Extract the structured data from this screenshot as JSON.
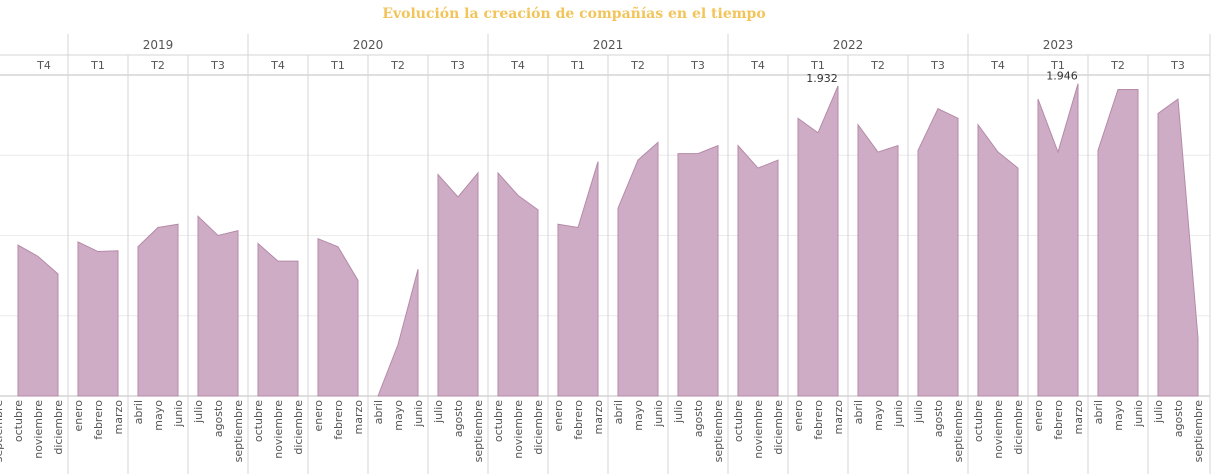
{
  "title": "Evolución la creación de compañías en el tiempo",
  "chart_data": {
    "type": "area",
    "title": "Evolución la creación de compañías en el tiempo",
    "color": "#cfacc5",
    "stroke_color": "#b58aa8",
    "title_color": "#f2c45a",
    "grid": true,
    "ylim": [
      0,
      2000
    ],
    "years": [
      {
        "label": "2019",
        "quarters": 4
      },
      {
        "label": "2020",
        "quarters": 4
      },
      {
        "label": "2021",
        "quarters": 4
      },
      {
        "label": "2022",
        "quarters": 4
      },
      {
        "label": "2023",
        "quarters": 3
      }
    ],
    "quarters": [
      {
        "label": "T4",
        "months": [
          "septiembre",
          "octubre",
          "noviembre",
          "diciembre"
        ],
        "values": [
          null,
          940,
          870,
          760
        ]
      },
      {
        "label": "T1",
        "months": [
          "enero",
          "febrero",
          "marzo"
        ],
        "values": [
          960,
          900,
          905
        ]
      },
      {
        "label": "T2",
        "months": [
          "abril",
          "mayo",
          "junio"
        ],
        "values": [
          930,
          1050,
          1070
        ]
      },
      {
        "label": "T3",
        "months": [
          "julio",
          "agosto",
          "septiembre"
        ],
        "values": [
          1120,
          1000,
          1030
        ]
      },
      {
        "label": "T4",
        "months": [
          "octubre",
          "noviembre",
          "diciembre"
        ],
        "values": [
          950,
          840,
          840
        ]
      },
      {
        "label": "T1",
        "months": [
          "enero",
          "febrero",
          "marzo"
        ],
        "values": [
          980,
          930,
          720
        ]
      },
      {
        "label": "T2",
        "months": [
          "abril",
          "mayo",
          "junio"
        ],
        "values": [
          0,
          320,
          790
        ]
      },
      {
        "label": "T3",
        "months": [
          "julio",
          "agosto",
          "septiembre"
        ],
        "values": [
          1380,
          1240,
          1390
        ]
      },
      {
        "label": "T4",
        "months": [
          "octubre",
          "noviembre",
          "diciembre"
        ],
        "values": [
          1390,
          1250,
          1160
        ]
      },
      {
        "label": "T1",
        "months": [
          "enero",
          "febrero",
          "marzo"
        ],
        "values": [
          1070,
          1050,
          1460
        ]
      },
      {
        "label": "T2",
        "months": [
          "abril",
          "mayo",
          "junio"
        ],
        "values": [
          1170,
          1470,
          1580
        ]
      },
      {
        "label": "T3",
        "months": [
          "julio",
          "agosto",
          "septiembre"
        ],
        "values": [
          1510,
          1510,
          1560
        ]
      },
      {
        "label": "T4",
        "months": [
          "octubre",
          "noviembre",
          "diciembre"
        ],
        "values": [
          1560,
          1420,
          1470
        ]
      },
      {
        "label": "T1",
        "months": [
          "enero",
          "febrero",
          "marzo"
        ],
        "values": [
          1730,
          1640,
          1932
        ]
      },
      {
        "label": "T2",
        "months": [
          "abril",
          "mayo",
          "junio"
        ],
        "values": [
          1690,
          1520,
          1560
        ]
      },
      {
        "label": "T3",
        "months": [
          "julio",
          "agosto",
          "septiembre"
        ],
        "values": [
          1530,
          1790,
          1730
        ]
      },
      {
        "label": "T4",
        "months": [
          "octubre",
          "noviembre",
          "diciembre"
        ],
        "values": [
          1690,
          1520,
          1420
        ]
      },
      {
        "label": "T1",
        "months": [
          "enero",
          "febrero",
          "marzo"
        ],
        "values": [
          1850,
          1520,
          1946
        ]
      },
      {
        "label": "T2",
        "months": [
          "abril",
          "mayo",
          "junio"
        ],
        "values": [
          1530,
          1910,
          1910
        ]
      },
      {
        "label": "T3",
        "months": [
          "julio",
          "agosto",
          "septiembre"
        ],
        "values": [
          1760,
          1850,
          360
        ]
      }
    ],
    "data_labels": [
      {
        "quarter_index": 13,
        "month_index": 2,
        "text": "1.932"
      },
      {
        "quarter_index": 17,
        "month_index": 2,
        "text": "1.946"
      }
    ]
  }
}
